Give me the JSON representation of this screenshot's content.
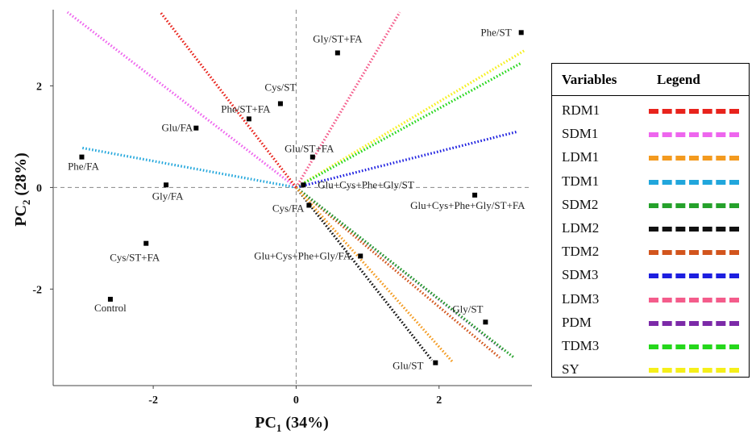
{
  "chart_data": {
    "type": "scatter",
    "subtype": "pca-biplot",
    "xlabel": "PC1 (34%)",
    "ylabel": "PC2 (28%)",
    "xlabel_main": "PC",
    "xlabel_sub": "1",
    "xlabel_rest": " (34%)",
    "ylabel_main": "PC",
    "ylabel_sub": "2",
    "ylabel_rest": " (28%)",
    "xlim": [
      -3.4,
      3.3
    ],
    "ylim": [
      -3.9,
      3.5
    ],
    "x_ticks": [
      -2,
      0,
      2
    ],
    "x_tick_labels": [
      "-2",
      "0",
      "2"
    ],
    "y_ticks": [
      -2,
      0,
      2
    ],
    "y_tick_labels": [
      "-2",
      "0",
      "2"
    ],
    "origin_lines": "dashed",
    "grid": false,
    "points": [
      {
        "label": "Phe/ST",
        "x": 3.15,
        "y": 3.05
      },
      {
        "label": "Gly/ST+FA",
        "x": 0.58,
        "y": 2.65
      },
      {
        "label": "Cys/ST",
        "x": -0.22,
        "y": 1.65
      },
      {
        "label": "Phe/ST+FA",
        "x": -0.66,
        "y": 1.35
      },
      {
        "label": "Glu/FA",
        "x": -1.4,
        "y": 1.17
      },
      {
        "label": "Phe/FA",
        "x": -3.0,
        "y": 0.6
      },
      {
        "label": "Glu/ST+FA",
        "x": 0.23,
        "y": 0.6
      },
      {
        "label": "Glu+Cys+Phe+Gly/ST",
        "x": 0.1,
        "y": 0.05
      },
      {
        "label": "Gly/FA",
        "x": -1.82,
        "y": 0.05
      },
      {
        "label": "Glu+Cys+Phe+Gly/ST+FA",
        "x": 2.5,
        "y": -0.15
      },
      {
        "label": "Cys/FA",
        "x": 0.18,
        "y": -0.35
      },
      {
        "label": "Cys/ST+FA",
        "x": -2.1,
        "y": -1.1
      },
      {
        "label": "Glu+Cys+Phe+Gly/FA",
        "x": 0.9,
        "y": -1.35
      },
      {
        "label": "Control",
        "x": -2.6,
        "y": -2.2
      },
      {
        "label": "Gly/ST",
        "x": 2.65,
        "y": -2.65
      },
      {
        "label": "Glu/ST",
        "x": 1.95,
        "y": -3.45
      }
    ],
    "loadings": [
      {
        "name": "RDM1",
        "color": "#e8231c",
        "x": -1.9,
        "y": 3.45
      },
      {
        "name": "SDM1",
        "color": "#ee66ee",
        "x": -3.2,
        "y": 3.45
      },
      {
        "name": "LDM1",
        "color": "#f39a1f",
        "x": 2.2,
        "y": -3.45
      },
      {
        "name": "TDM1",
        "color": "#21a6dc",
        "x": -3.0,
        "y": 0.78
      },
      {
        "name": "SDM2",
        "color": "#25a12b",
        "x": 3.05,
        "y": -3.35
      },
      {
        "name": "LDM2",
        "color": "#111111",
        "x": 1.9,
        "y": -3.4
      },
      {
        "name": "TDM2",
        "color": "#d2551d",
        "x": 2.85,
        "y": -3.35
      },
      {
        "name": "SDM3",
        "color": "#1d1fe0",
        "x": 3.1,
        "y": 1.1
      },
      {
        "name": "LDM3",
        "color": "#f45c8b",
        "x": 1.45,
        "y": 3.45
      },
      {
        "name": "PDM",
        "color": "#7c2aa8",
        "x": 2.9,
        "y": -3.2
      },
      {
        "name": "TDM3",
        "color": "#25d71b",
        "x": 3.15,
        "y": 2.45
      },
      {
        "name": "SY",
        "color": "#f5ef1a",
        "x": 3.2,
        "y": 2.7
      }
    ]
  },
  "legend": {
    "header_variables": "Variables",
    "header_legend": "Legend"
  }
}
